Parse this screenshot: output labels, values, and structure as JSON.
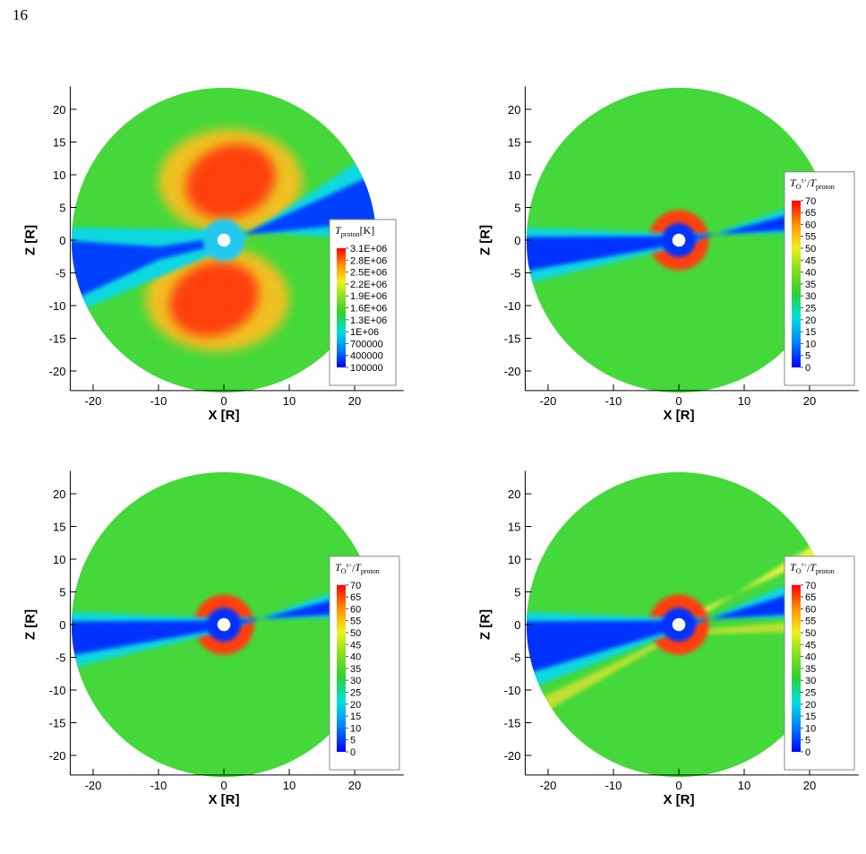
{
  "page_number": "16",
  "chart_data": [
    {
      "type": "contour",
      "x_label": "X [R]",
      "y_label": "Z [R]",
      "xlim": [
        -23.5,
        27.5
      ],
      "ylim": [
        -23,
        23.5
      ],
      "xticks": [
        -20,
        -10,
        0,
        10,
        20
      ],
      "yticks": [
        -20,
        -15,
        -10,
        -5,
        0,
        5,
        10,
        15,
        20
      ],
      "legend": {
        "title": {
          "numerator": "T",
          "numerator_ion": "proton",
          "unit": "[K]"
        },
        "levels": [
          {
            "value": 3100000,
            "label": "3.1E+06"
          },
          {
            "value": 2800000,
            "label": "2.8E+06"
          },
          {
            "value": 2500000,
            "label": "2.5E+06"
          },
          {
            "value": 2200000,
            "label": "2.2E+06"
          },
          {
            "value": 1900000,
            "label": "1.9E+06"
          },
          {
            "value": 1600000,
            "label": "1.6E+06"
          },
          {
            "value": 1300000,
            "label": "1.3E+06"
          },
          {
            "value": 1000000,
            "label": "1E+06"
          },
          700000,
          400000,
          100000
        ]
      }
    },
    {
      "type": "contour",
      "x_label": "X [R]",
      "y_label": "Z [R]",
      "xlim": [
        -23.5,
        27.5
      ],
      "ylim": [
        -23,
        23.5
      ],
      "xticks": [
        -20,
        -10,
        0,
        10,
        20
      ],
      "yticks": [
        -20,
        -15,
        -10,
        -5,
        0,
        5,
        10,
        15,
        20
      ],
      "legend": {
        "title": {
          "numerator": "T",
          "numerator_ion": "O",
          "ion_charge": "5+",
          "slash": "/",
          "denominator": "T",
          "denominator_sub": "proton"
        },
        "levels": [
          70,
          65,
          60,
          55,
          50,
          45,
          40,
          35,
          30,
          25,
          20,
          15,
          10,
          5,
          0
        ]
      }
    },
    {
      "type": "contour",
      "x_label": "X [R]",
      "y_label": "Z [R]",
      "xlim": [
        -23.5,
        27.5
      ],
      "ylim": [
        -23,
        23.5
      ],
      "xticks": [
        -20,
        -10,
        0,
        10,
        20
      ],
      "yticks": [
        -20,
        -15,
        -10,
        -5,
        0,
        5,
        10,
        15,
        20
      ],
      "legend": {
        "title": {
          "numerator": "T",
          "numerator_ion": "O",
          "ion_charge": "6+",
          "slash": "/",
          "denominator": "T",
          "denominator_sub": "proton"
        },
        "levels": [
          70,
          65,
          60,
          55,
          50,
          45,
          40,
          35,
          30,
          25,
          20,
          15,
          10,
          5,
          0
        ]
      }
    },
    {
      "type": "contour",
      "x_label": "X [R]",
      "y_label": "Z [R]",
      "xlim": [
        -23.5,
        27.5
      ],
      "ylim": [
        -23,
        23.5
      ],
      "xticks": [
        -20,
        -10,
        0,
        10,
        20
      ],
      "yticks": [
        -20,
        -15,
        -10,
        -5,
        0,
        5,
        10,
        15,
        20
      ],
      "legend": {
        "title": {
          "numerator": "T",
          "numerator_ion": "O",
          "ion_charge": "7+",
          "slash": "/",
          "denominator": "T",
          "denominator_sub": "proton"
        },
        "levels": [
          70,
          65,
          60,
          55,
          50,
          45,
          40,
          35,
          30,
          25,
          20,
          15,
          10,
          5,
          0
        ]
      }
    }
  ]
}
